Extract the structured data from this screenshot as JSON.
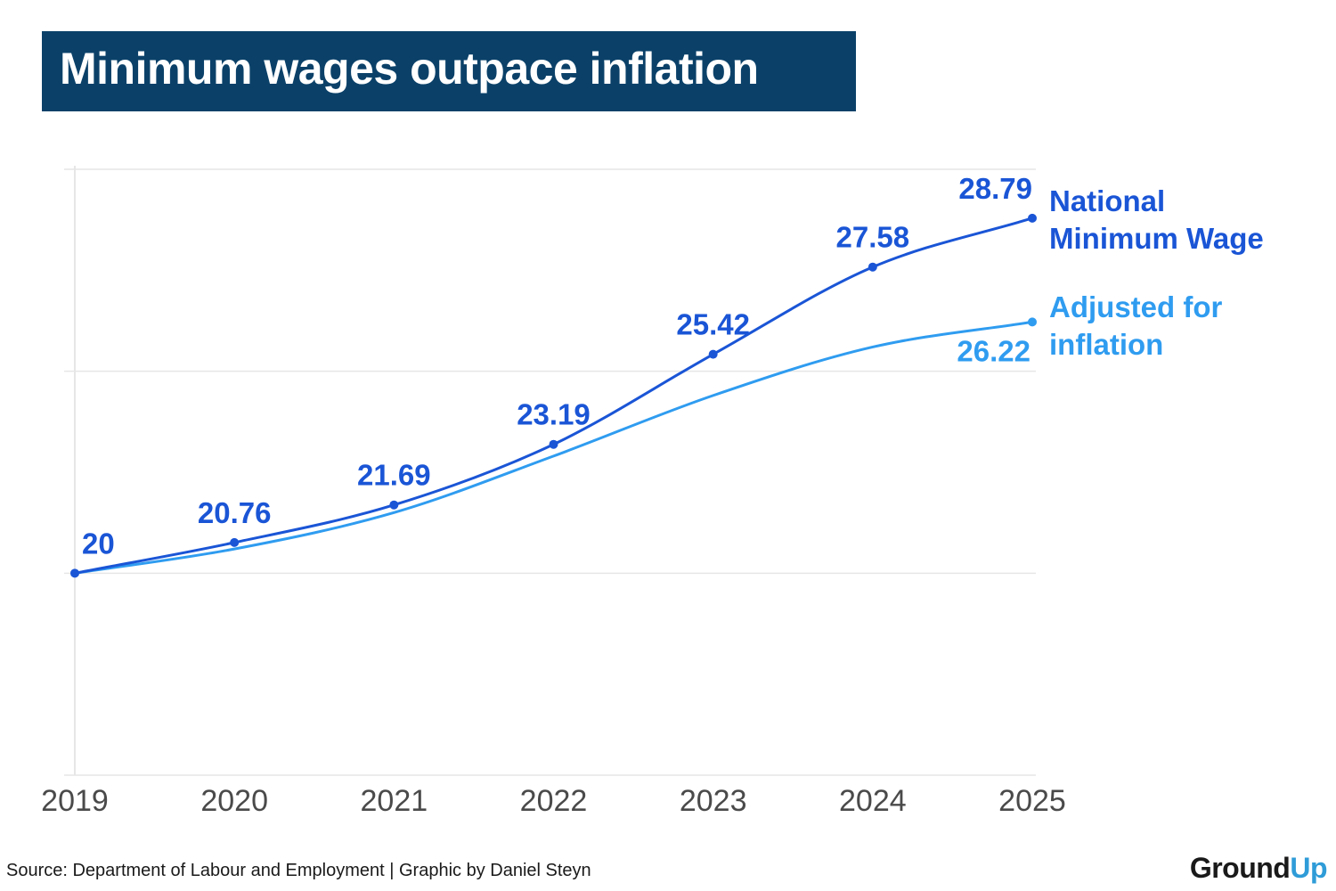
{
  "title": "Minimum wages outpace inflation",
  "source": "Source: Department of Labour and Employment | Graphic by Daniel Steyn",
  "logo": {
    "part1": "Ground",
    "part2": "Up"
  },
  "colors": {
    "title_bg": "#0b4169",
    "wage": "#1a55d6",
    "adjusted": "#2f9cf0",
    "grid": "#e6e6e6",
    "tick": "#4a4a4a"
  },
  "chart_data": {
    "type": "line",
    "x": [
      "2019",
      "2020",
      "2021",
      "2022",
      "2023",
      "2024",
      "2025"
    ],
    "ylim": [
      15,
      30
    ],
    "grid": true,
    "series": [
      {
        "name": "National Minimum Wage",
        "name_lines": [
          "National",
          "Minimum Wage"
        ],
        "values": [
          20,
          20.76,
          21.69,
          23.19,
          25.42,
          27.58,
          28.79
        ],
        "labels": [
          "20",
          "20.76",
          "21.69",
          "23.19",
          "25.42",
          "27.58",
          "28.79"
        ]
      },
      {
        "name": "Adjusted for inflation",
        "name_lines": [
          "Adjusted for",
          "inflation"
        ],
        "values": [
          20,
          20.6,
          21.5,
          22.9,
          24.4,
          25.6,
          26.22
        ],
        "labels": [
          "",
          "",
          "",
          "",
          "",
          "",
          "26.22"
        ]
      }
    ]
  }
}
